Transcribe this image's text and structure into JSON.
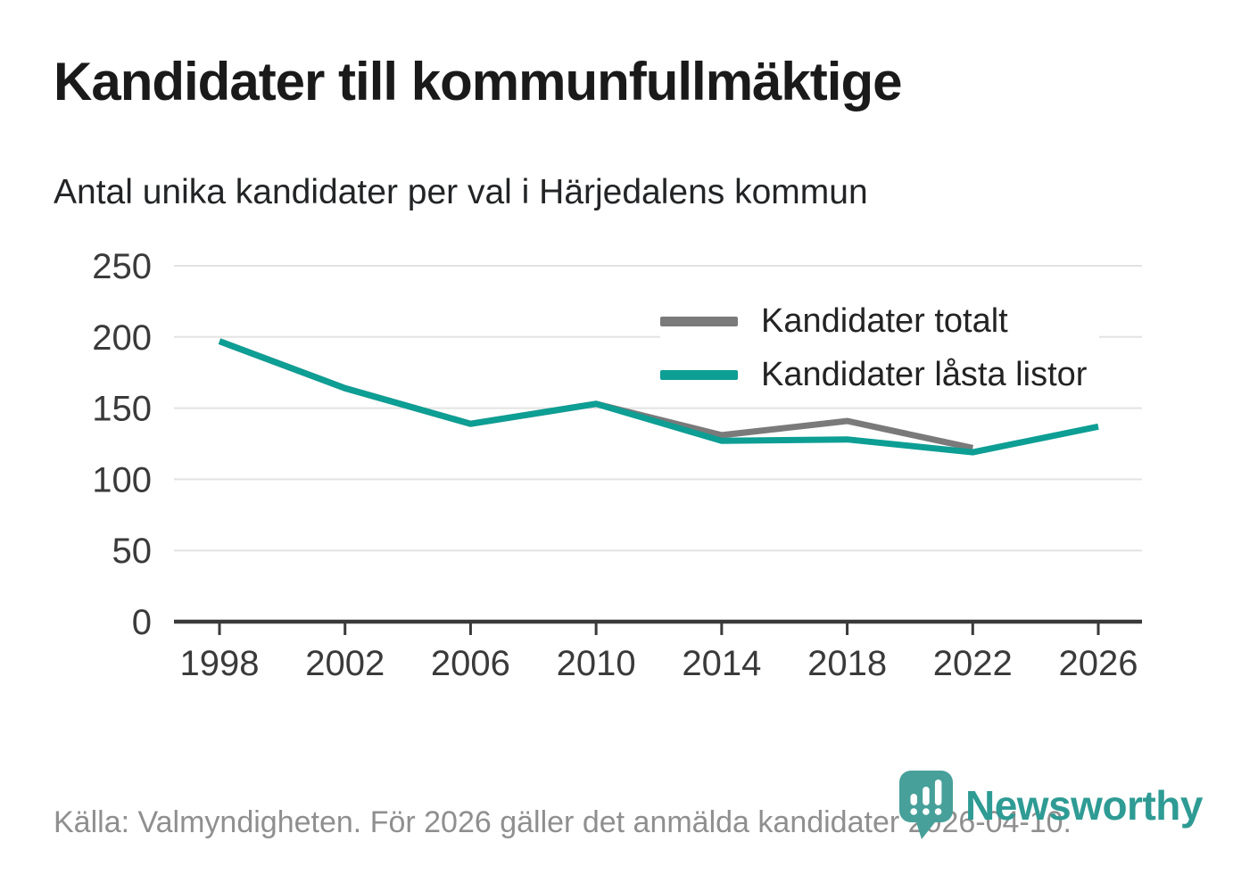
{
  "header": {
    "title": "Kandidater till kommunfullmäktige",
    "subtitle": "Antal unika kandidater per val i Härjedalens kommun"
  },
  "chart_data": {
    "type": "line",
    "title": "Kandidater till kommunfullmäktige",
    "subtitle": "Antal unika kandidater per val i Härjedalens kommun",
    "x": [
      1998,
      2002,
      2006,
      2010,
      2014,
      2018,
      2022,
      2026
    ],
    "series": [
      {
        "name": "Kandidater totalt",
        "color": "#7a7a7a",
        "values": [
          197,
          164,
          139,
          153,
          131,
          141,
          122,
          null
        ]
      },
      {
        "name": "Kandidater låsta listor",
        "color": "#0d9e94",
        "values": [
          197,
          164,
          139,
          153,
          127,
          128,
          119,
          137
        ]
      }
    ],
    "xlabel": "",
    "ylabel": "",
    "ylim": [
      0,
      250
    ],
    "yticks": [
      0,
      50,
      100,
      150,
      200,
      250
    ],
    "grid": true,
    "legend_position": "top-right"
  },
  "footer": {
    "source_text": "Källa: Valmyndigheten. För 2026 gäller det anmälda kandidater 2026-04-10.",
    "logo_text": "Newsworthy",
    "logo_icon": "newsworthy-pin-bar-chart-icon"
  },
  "colors": {
    "axis": "#3a3a3a",
    "grid": "#e3e3e3",
    "tick_label": "#3a3a3a",
    "series_total": "#7a7a7a",
    "series_locked": "#0d9e94",
    "logo_icon_teal": "#47a09a",
    "logo_text_teal": "#2e9b94"
  }
}
